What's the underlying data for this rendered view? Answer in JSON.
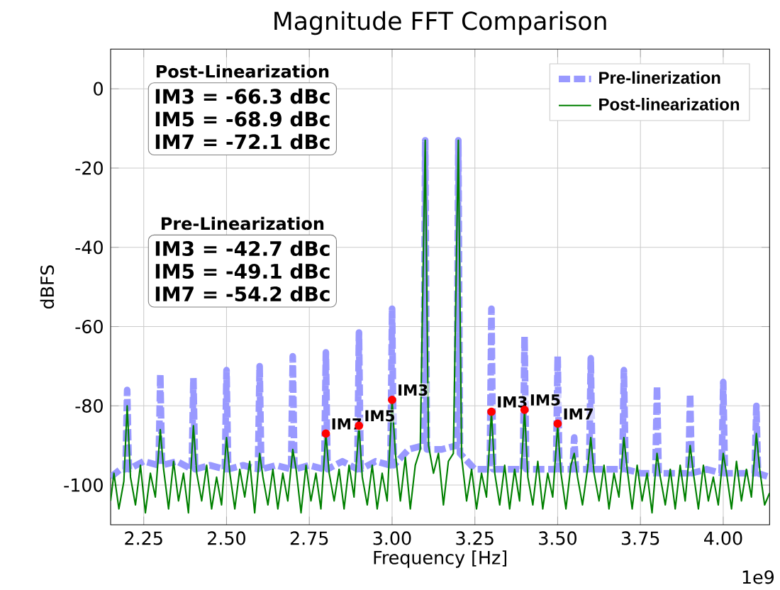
{
  "chart_data": {
    "type": "line",
    "title": "Magnitude FFT Comparison",
    "xlabel": "Frequency [Hz]",
    "ylabel": "dBFS",
    "xlim": [
      2.15,
      4.14
    ],
    "ylim": [
      -110,
      10
    ],
    "xticks": [
      2.25,
      {
        "value": 2.5,
        "label": "2.50"
      },
      2.75,
      {
        "value": 3.0,
        "label": "3.00"
      },
      3.25,
      {
        "value": 3.5,
        "label": "3.50"
      },
      3.75,
      {
        "value": 4.0,
        "label": "4.00"
      }
    ],
    "yticks": [
      -100,
      -80,
      -60,
      -40,
      -20,
      0
    ],
    "grid": true,
    "legend": "top right",
    "series": [
      {
        "name": "Pre-linerization",
        "color": "#9999ff",
        "line_style": "dashed",
        "x": [
          2.15,
          2.18,
          2.195,
          2.2,
          2.205,
          2.25,
          2.295,
          2.3,
          2.305,
          2.35,
          2.395,
          2.4,
          2.405,
          2.45,
          2.495,
          2.5,
          2.505,
          2.55,
          2.595,
          2.6,
          2.605,
          2.65,
          2.695,
          2.7,
          2.705,
          2.75,
          2.795,
          2.8,
          2.805,
          2.85,
          2.895,
          2.9,
          2.905,
          2.95,
          2.995,
          3.0,
          3.005,
          3.05,
          3.095,
          3.1,
          3.105,
          3.15,
          3.195,
          3.2,
          3.205,
          3.25,
          3.295,
          3.3,
          3.305,
          3.35,
          3.395,
          3.4,
          3.405,
          3.45,
          3.495,
          3.5,
          3.505,
          3.545,
          3.55,
          3.555,
          3.595,
          3.6,
          3.605,
          3.65,
          3.695,
          3.7,
          3.705,
          3.75,
          3.795,
          3.8,
          3.805,
          3.85,
          3.895,
          3.9,
          3.905,
          3.95,
          3.995,
          4.0,
          4.005,
          4.05,
          4.095,
          4.1,
          4.105,
          4.14
        ],
        "values": [
          -98,
          -96,
          -96,
          -76,
          -96,
          -94,
          -95,
          -72,
          -95,
          -94,
          -96,
          -73,
          -96,
          -95,
          -96,
          -71,
          -96,
          -95,
          -96,
          -70,
          -96,
          -95,
          -96,
          -67.5,
          -96,
          -95,
          -96,
          -66.5,
          -96,
          -94,
          -96,
          -61.5,
          -96,
          -94,
          -95,
          -55.5,
          -95,
          -91,
          -90,
          -13,
          -91,
          -91,
          -90,
          -13,
          -92,
          -96,
          -96,
          -55.5,
          -96,
          -96,
          -96,
          -62.5,
          -96,
          -96,
          -96,
          -67.5,
          -96,
          -96,
          -88,
          -96,
          -96,
          -68,
          -96,
          -96,
          -96,
          -71,
          -96,
          -97,
          -97,
          -75,
          -97,
          -97,
          -97,
          -77,
          -97,
          -96,
          -97,
          -74,
          -97,
          -97,
          -97,
          -80,
          -97,
          -98
        ]
      },
      {
        "name": "Post-linearization",
        "color": "#008000",
        "line_style": "solid",
        "x": [
          2.15,
          2.16,
          2.175,
          2.19,
          2.2,
          2.21,
          2.225,
          2.24,
          2.255,
          2.27,
          2.285,
          2.3,
          2.31,
          2.325,
          2.34,
          2.355,
          2.37,
          2.385,
          2.4,
          2.41,
          2.425,
          2.44,
          2.455,
          2.47,
          2.485,
          2.5,
          2.51,
          2.525,
          2.54,
          2.555,
          2.57,
          2.585,
          2.6,
          2.61,
          2.625,
          2.64,
          2.655,
          2.67,
          2.685,
          2.7,
          2.71,
          2.725,
          2.74,
          2.755,
          2.77,
          2.785,
          2.8,
          2.81,
          2.825,
          2.84,
          2.855,
          2.87,
          2.885,
          2.9,
          2.91,
          2.925,
          2.94,
          2.955,
          2.97,
          2.985,
          3.0,
          3.01,
          3.025,
          3.04,
          3.055,
          3.07,
          3.085,
          3.1,
          3.11,
          3.125,
          3.14,
          3.155,
          3.17,
          3.185,
          3.2,
          3.21,
          3.225,
          3.24,
          3.255,
          3.27,
          3.285,
          3.3,
          3.31,
          3.325,
          3.34,
          3.355,
          3.37,
          3.385,
          3.4,
          3.41,
          3.425,
          3.44,
          3.455,
          3.47,
          3.485,
          3.5,
          3.51,
          3.525,
          3.54,
          3.55,
          3.56,
          3.575,
          3.59,
          3.6,
          3.61,
          3.625,
          3.64,
          3.655,
          3.67,
          3.685,
          3.7,
          3.71,
          3.725,
          3.74,
          3.755,
          3.77,
          3.785,
          3.8,
          3.81,
          3.825,
          3.84,
          3.855,
          3.87,
          3.885,
          3.9,
          3.91,
          3.925,
          3.94,
          3.955,
          3.97,
          3.985,
          4.0,
          4.01,
          4.025,
          4.04,
          4.055,
          4.07,
          4.085,
          4.1,
          4.11,
          4.125,
          4.14
        ],
        "values": [
          -104,
          -97,
          -106,
          -99,
          -80,
          -98,
          -105,
          -95,
          -107,
          -97,
          -103,
          -86,
          -96,
          -106,
          -94,
          -104,
          -97,
          -107,
          -85,
          -97,
          -104,
          -95,
          -106,
          -98,
          -105,
          -88,
          -97,
          -106,
          -96,
          -103,
          -94,
          -107,
          -92,
          -98,
          -105,
          -96,
          -106,
          -97,
          -104,
          -91,
          -96,
          -107,
          -95,
          -104,
          -97,
          -106,
          -87,
          -97,
          -104,
          -96,
          -106,
          -95,
          -103,
          -85,
          -98,
          -105,
          -95,
          -106,
          -97,
          -104,
          -78.5,
          -92,
          -104,
          -93,
          -106,
          -95,
          -91,
          -13,
          -90,
          -97,
          -92,
          -105,
          -94,
          -92,
          -13,
          -93,
          -104,
          -96,
          -106,
          -97,
          -103,
          -81.5,
          -97,
          -105,
          -95,
          -106,
          -96,
          -104,
          -81,
          -98,
          -105,
          -94,
          -106,
          -97,
          -103,
          -85,
          -97,
          -106,
          -95,
          -92,
          -98,
          -105,
          -96,
          -88,
          -97,
          -104,
          -95,
          -106,
          -97,
          -103,
          -88,
          -96,
          -106,
          -95,
          -104,
          -97,
          -107,
          -92,
          -98,
          -105,
          -96,
          -106,
          -95,
          -104,
          -90,
          -97,
          -106,
          -95,
          -104,
          -98,
          -105,
          -92,
          -97,
          -106,
          -94,
          -104,
          -96,
          -103,
          -87,
          -96,
          -105,
          -102
        ]
      },
      {
        "type": "scatter",
        "color": "#ff0000",
        "marker": "circle",
        "x": [
          2.8,
          2.9,
          3.0,
          3.3,
          3.4,
          3.5
        ],
        "values": [
          -87,
          -85,
          -78.5,
          -81.5,
          -81,
          -84.5
        ]
      }
    ],
    "annotations": [
      "Post-Linearization",
      "IM3 = -66.3 dBc",
      "IM5 = -68.9 dBc",
      "IM7 = -72.1 dBc",
      "Pre-Linearization",
      "IM3 = -42.7 dBc",
      "IM5 = -49.1 dBc",
      "IM7 = -54.2 dBc",
      "1e9",
      {
        "text": "IM7",
        "x": 2.8,
        "y": -87
      },
      {
        "text": "IM5",
        "x": 2.9,
        "y": -85
      },
      {
        "text": "IM3",
        "x": 3.0,
        "y": -78.5
      },
      {
        "text": "IM3",
        "x": 3.3,
        "y": -81.5
      },
      {
        "text": "IM5",
        "x": 3.4,
        "y": -81
      },
      {
        "text": "IM7",
        "x": 3.5,
        "y": -84.5
      }
    ]
  }
}
